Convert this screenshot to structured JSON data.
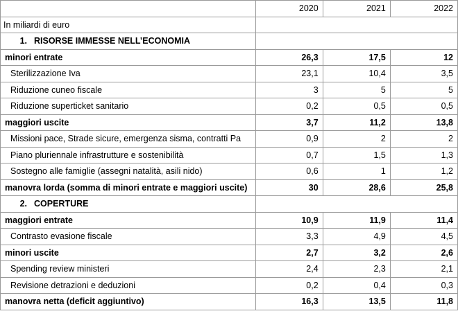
{
  "table": {
    "years": [
      "2020",
      "2021",
      "2022"
    ],
    "unit_label": "In miliardi di euro",
    "section1": {
      "number": "1.",
      "title": "RISORSE IMMESSE NELL’ECONOMIA"
    },
    "rows1": [
      {
        "label": "minori entrate",
        "v": [
          "26,3",
          "17,5",
          "12"
        ]
      },
      {
        "label": "Sterilizzazione Iva",
        "v": [
          "23,1",
          "10,4",
          "3,5"
        ]
      },
      {
        "label": "Riduzione cuneo fiscale",
        "v": [
          "3",
          "5",
          "5"
        ]
      },
      {
        "label": "Riduzione superticket sanitario",
        "v": [
          "0,2",
          "0,5",
          "0,5"
        ]
      },
      {
        "label": "maggiori uscite",
        "v": [
          "3,7",
          "11,2",
          "13,8"
        ]
      },
      {
        "label": "Missioni pace, Strade sicure, emergenza sisma, contratti Pa",
        "v": [
          "0,9",
          "2",
          "2"
        ]
      },
      {
        "label": "Piano pluriennale infrastrutture e sostenibilità",
        "v": [
          "0,7",
          "1,5",
          "1,3"
        ]
      },
      {
        "label": "Sostegno alle famiglie (assegni natalità, asili nido)",
        "v": [
          "0,6",
          "1",
          "1,2"
        ]
      },
      {
        "label": "manovra lorda (somma di minori entrate e maggiori uscite)",
        "v": [
          "30",
          "28,6",
          "25,8"
        ]
      }
    ],
    "section2": {
      "number": "2.",
      "title": "COPERTURE"
    },
    "rows2": [
      {
        "label": "maggiori entrate",
        "v": [
          "10,9",
          "11,9",
          "11,4"
        ]
      },
      {
        "label": "Contrasto evasione fiscale",
        "v": [
          "3,3",
          "4,9",
          "4,5"
        ]
      },
      {
        "label": "minori uscite",
        "v": [
          "2,7",
          "3,2",
          "2,6"
        ]
      },
      {
        "label": "Spending review ministeri",
        "v": [
          "2,4",
          "2,3",
          "2,1"
        ]
      },
      {
        "label": "Revisione detrazioni e deduzioni",
        "v": [
          "0,2",
          "0,4",
          "0,3"
        ]
      },
      {
        "label": "manovra netta (deficit aggiuntivo)",
        "v": [
          "16,3",
          "13,5",
          "11,8"
        ]
      }
    ]
  }
}
